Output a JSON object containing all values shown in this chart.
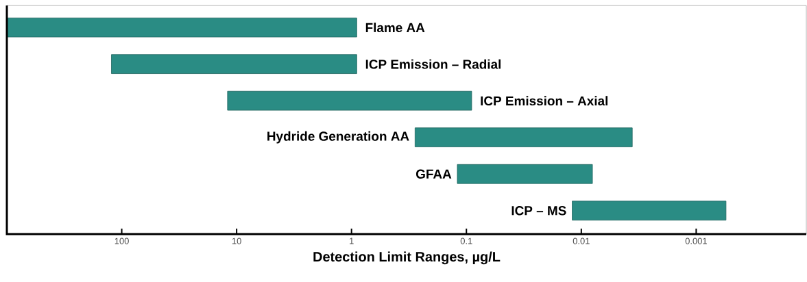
{
  "chart_data": {
    "type": "bar",
    "orientation": "horizontal",
    "log": "x",
    "xlabel": "Detection Limit Ranges, µg/L",
    "categories": [
      "Flame AA",
      "ICP Emission – Radial",
      "ICP Emission – Axial",
      "Hydride Generation AA",
      "GFAA",
      "ICP – MS"
    ],
    "base": [
      0.9,
      0.9,
      0.09,
      0.0036,
      0.008,
      0.00055
    ],
    "values": [
      999.1,
      122.1,
      11.91,
      0.2764,
      0.112,
      0.01145
    ],
    "color": "#2a8c84",
    "xlim": [
      1000,
      0.00011
    ],
    "xticks": [
      100,
      10,
      1,
      0.1,
      0.01,
      0.001
    ],
    "tick_labels": "x",
    "grid": false
  }
}
